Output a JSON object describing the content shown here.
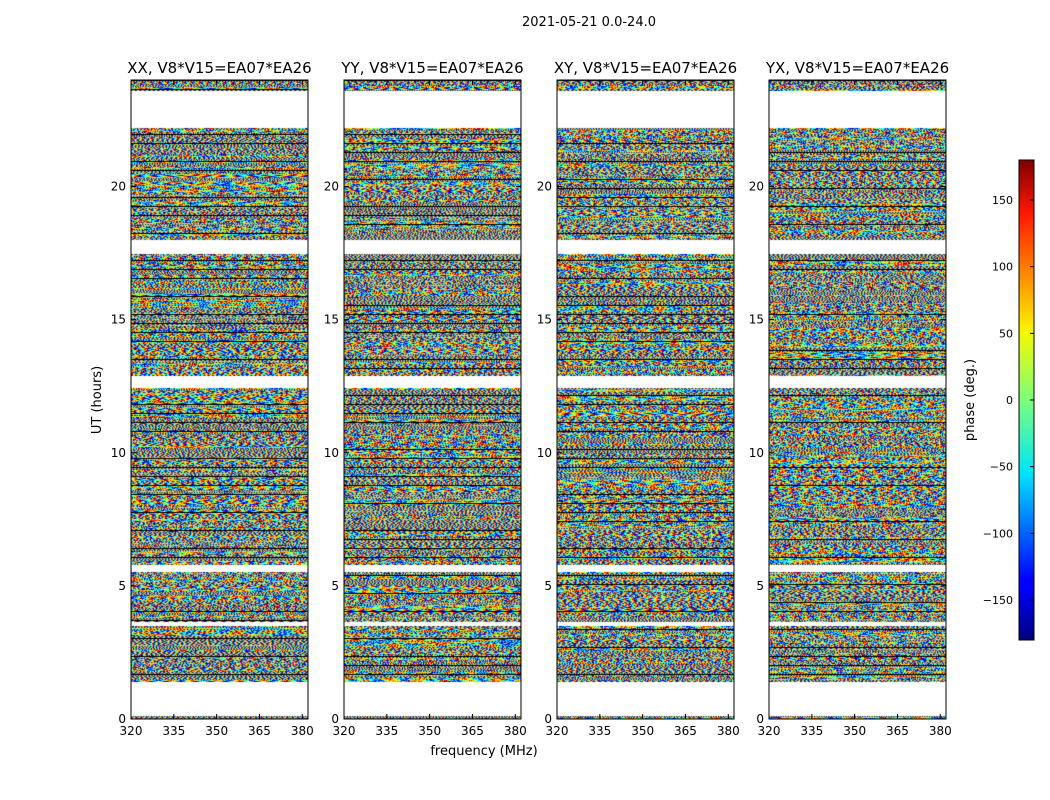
{
  "chart_data": {
    "type": "heatmap",
    "title": "2021-05-21 0.0-24.0",
    "xlabel": "frequency (MHz)",
    "ylabel": "UT (hours)",
    "xlim": [
      320,
      382
    ],
    "ylim": [
      0,
      24
    ],
    "x_ticks": [
      320,
      335,
      350,
      365,
      380
    ],
    "y_ticks": [
      0,
      5,
      10,
      15,
      20
    ],
    "panels": [
      {
        "title": "XX, V8*V15=EA07*EA26",
        "pol": "XX"
      },
      {
        "title": "YY, V8*V15=EA07*EA26",
        "pol": "YY"
      },
      {
        "title": "XY, V8*V15=EA07*EA26",
        "pol": "XY"
      },
      {
        "title": "YX, V8*V15=EA07*EA26",
        "pol": "YX"
      }
    ],
    "colorbar": {
      "label": "phase (deg.)",
      "range": [
        -180,
        180
      ],
      "ticks": [
        150,
        100,
        50,
        0,
        -50,
        -100,
        -150
      ],
      "colormap": "jet"
    },
    "data_gaps_hours": [
      [
        0.15,
        1.4
      ],
      [
        22.2,
        23.6
      ],
      [
        17.5,
        18.0
      ],
      [
        12.45,
        12.9
      ],
      [
        5.55,
        5.8
      ],
      [
        3.5,
        3.65
      ]
    ],
    "blank_rows_hours": [
      0.0,
      0.08
    ]
  },
  "colors": {
    "axis": "#000000",
    "background": "#ffffff",
    "flag_line": "#000000"
  }
}
